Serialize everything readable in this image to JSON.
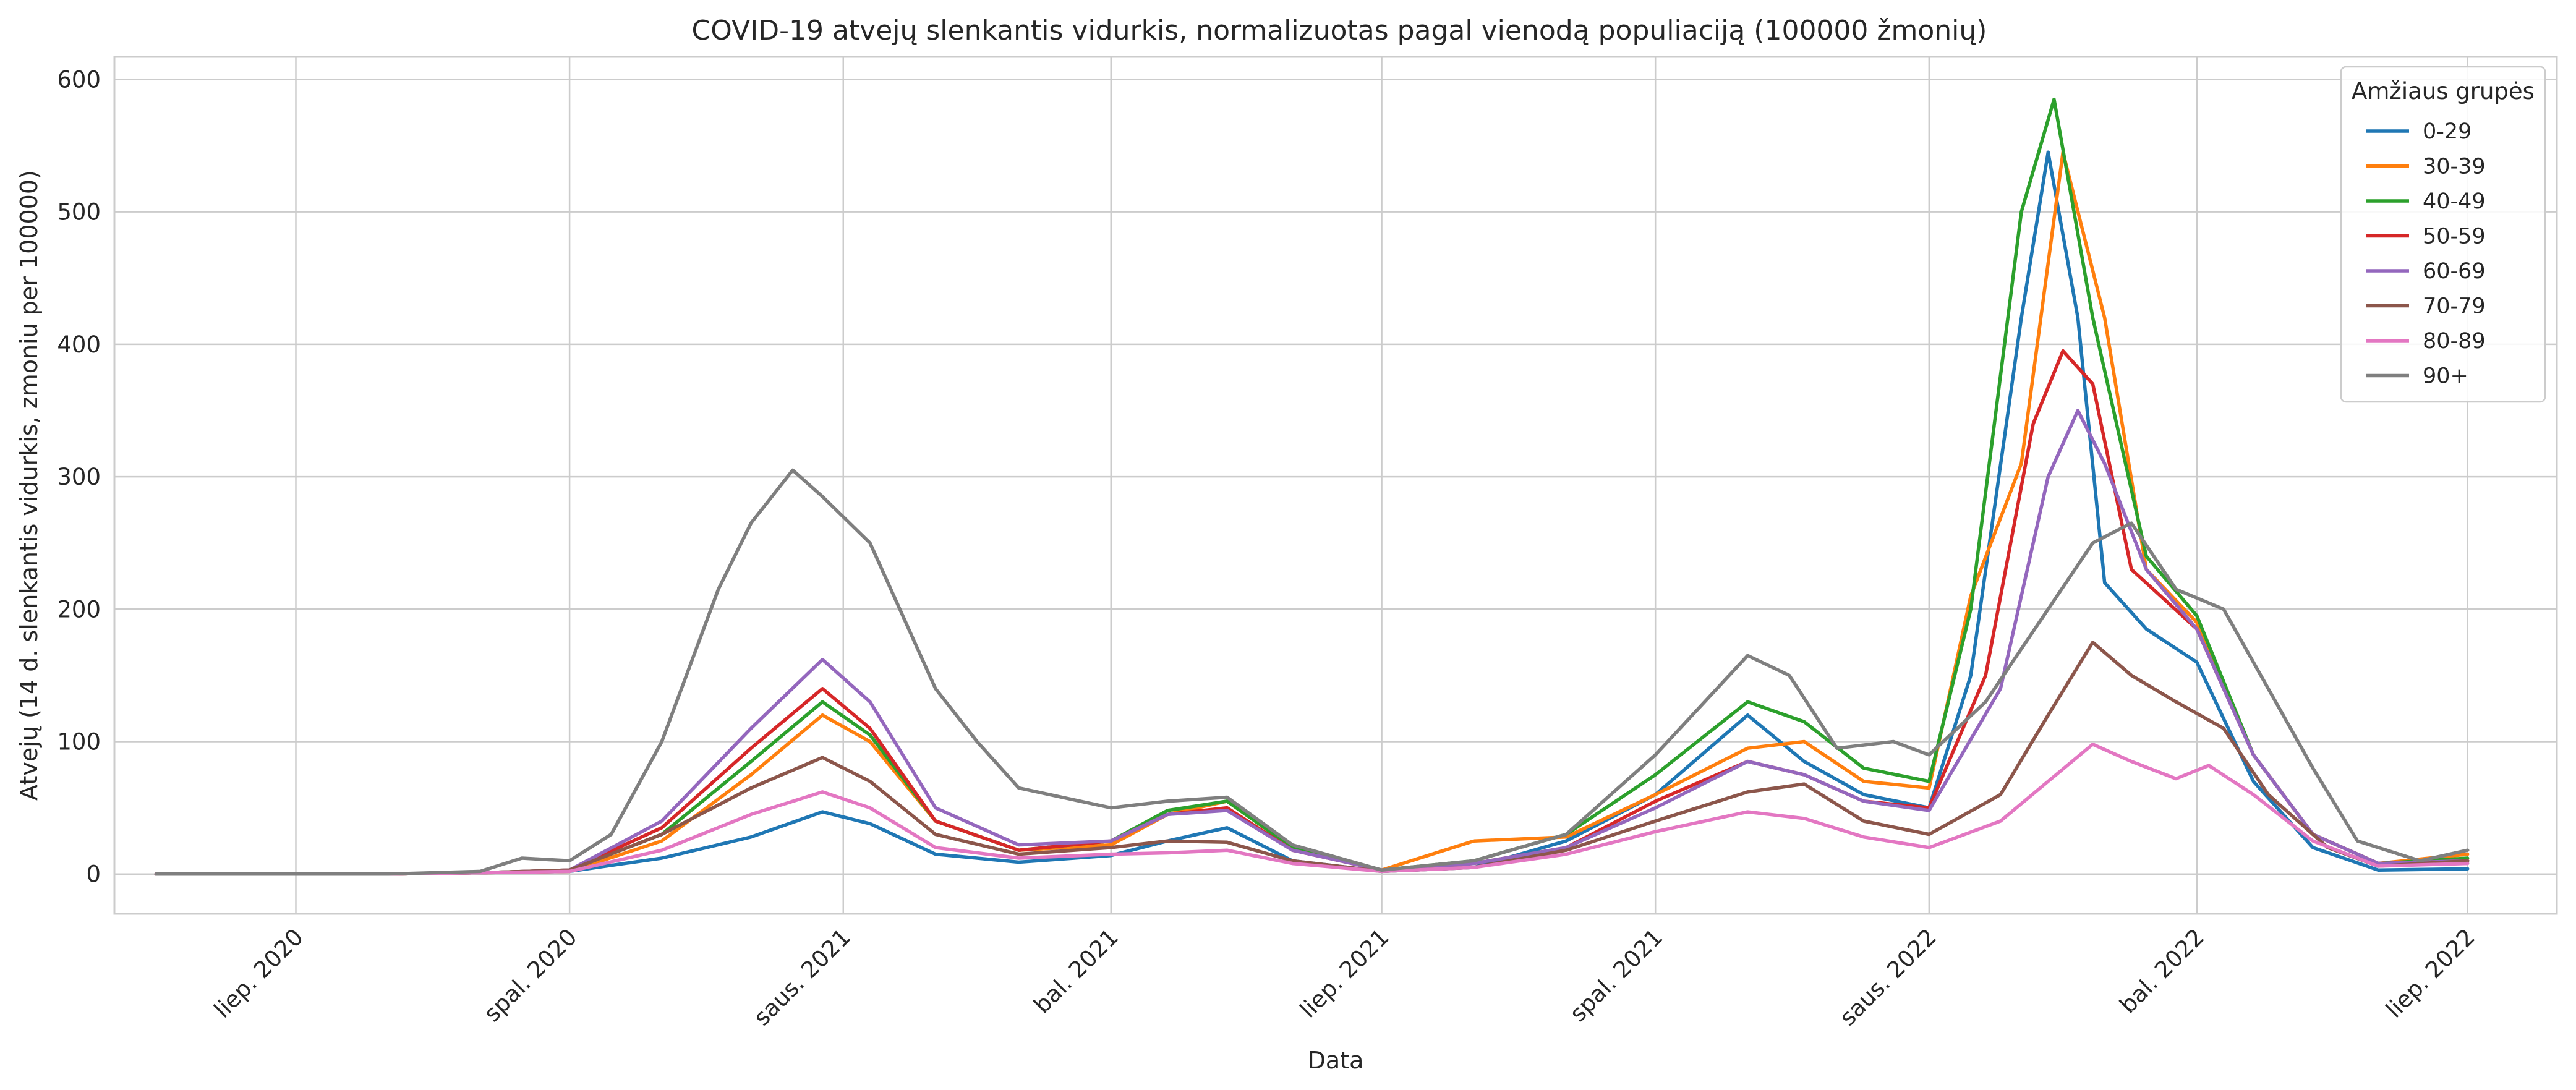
{
  "chart_data": {
    "type": "line",
    "title": "COVID-19 atvejų slenkantis vidurkis, normalizuotas pagal vienodą populiaciją (100000 žmonių)",
    "xlabel": "Data",
    "ylabel": "Atvejų (14 d. slenkantis vidurkis, zmoniu per 100000)",
    "x_range": [
      "2020-05-01",
      "2022-07-31"
    ],
    "ylim": [
      -30,
      617
    ],
    "grid": true,
    "legend": {
      "title": "Amžiaus grupės",
      "position": "top-right"
    },
    "x_ticks": [
      {
        "date": "2020-07-01",
        "label": "liep. 2020"
      },
      {
        "date": "2020-10-01",
        "label": "spal. 2020"
      },
      {
        "date": "2021-01-01",
        "label": "saus. 2021"
      },
      {
        "date": "2021-04-01",
        "label": "bal. 2021"
      },
      {
        "date": "2021-07-01",
        "label": "liep. 2021"
      },
      {
        "date": "2021-10-01",
        "label": "spal. 2021"
      },
      {
        "date": "2022-01-01",
        "label": "saus. 2022"
      },
      {
        "date": "2022-04-01",
        "label": "bal. 2022"
      },
      {
        "date": "2022-07-01",
        "label": "liep. 2022"
      }
    ],
    "y_ticks": [
      0,
      100,
      200,
      300,
      400,
      500,
      600
    ],
    "series": [
      {
        "name": "0-29",
        "color": "#1f77b4",
        "points": [
          [
            "2020-05-15",
            0
          ],
          [
            "2020-08-01",
            0
          ],
          [
            "2020-09-01",
            1
          ],
          [
            "2020-10-01",
            2
          ],
          [
            "2020-11-01",
            12
          ],
          [
            "2020-12-01",
            28
          ],
          [
            "2020-12-25",
            47
          ],
          [
            "2021-01-10",
            38
          ],
          [
            "2021-02-01",
            15
          ],
          [
            "2021-03-01",
            9
          ],
          [
            "2021-04-01",
            14
          ],
          [
            "2021-04-20",
            25
          ],
          [
            "2021-05-10",
            35
          ],
          [
            "2021-06-01",
            10
          ],
          [
            "2021-07-01",
            2
          ],
          [
            "2021-08-01",
            5
          ],
          [
            "2021-09-01",
            25
          ],
          [
            "2021-10-01",
            60
          ],
          [
            "2021-11-01",
            120
          ],
          [
            "2021-11-20",
            85
          ],
          [
            "2021-12-10",
            60
          ],
          [
            "2022-01-01",
            50
          ],
          [
            "2022-01-15",
            150
          ],
          [
            "2022-02-01",
            420
          ],
          [
            "2022-02-10",
            545
          ],
          [
            "2022-02-20",
            420
          ],
          [
            "2022-03-01",
            220
          ],
          [
            "2022-03-15",
            185
          ],
          [
            "2022-04-01",
            160
          ],
          [
            "2022-04-20",
            70
          ],
          [
            "2022-05-10",
            20
          ],
          [
            "2022-06-01",
            3
          ],
          [
            "2022-07-01",
            4
          ]
        ]
      },
      {
        "name": "30-39",
        "color": "#ff7f0e",
        "points": [
          [
            "2020-05-15",
            0
          ],
          [
            "2020-08-01",
            0
          ],
          [
            "2020-09-01",
            1
          ],
          [
            "2020-10-01",
            2
          ],
          [
            "2020-11-01",
            25
          ],
          [
            "2020-12-01",
            75
          ],
          [
            "2020-12-25",
            120
          ],
          [
            "2021-01-10",
            100
          ],
          [
            "2021-02-01",
            40
          ],
          [
            "2021-03-01",
            18
          ],
          [
            "2021-04-01",
            22
          ],
          [
            "2021-04-20",
            45
          ],
          [
            "2021-05-10",
            55
          ],
          [
            "2021-06-01",
            20
          ],
          [
            "2021-07-01",
            3
          ],
          [
            "2021-08-01",
            25
          ],
          [
            "2021-09-01",
            28
          ],
          [
            "2021-10-01",
            60
          ],
          [
            "2021-11-01",
            95
          ],
          [
            "2021-11-20",
            100
          ],
          [
            "2021-12-10",
            70
          ],
          [
            "2022-01-01",
            65
          ],
          [
            "2022-01-15",
            210
          ],
          [
            "2022-02-01",
            310
          ],
          [
            "2022-02-15",
            545
          ],
          [
            "2022-03-01",
            420
          ],
          [
            "2022-03-15",
            230
          ],
          [
            "2022-04-01",
            190
          ],
          [
            "2022-04-20",
            90
          ],
          [
            "2022-05-10",
            30
          ],
          [
            "2022-06-01",
            8
          ],
          [
            "2022-07-01",
            15
          ]
        ]
      },
      {
        "name": "40-49",
        "color": "#2ca02c",
        "points": [
          [
            "2020-05-15",
            0
          ],
          [
            "2020-08-01",
            0
          ],
          [
            "2020-09-01",
            1
          ],
          [
            "2020-10-01",
            3
          ],
          [
            "2020-11-01",
            30
          ],
          [
            "2020-12-01",
            85
          ],
          [
            "2020-12-25",
            130
          ],
          [
            "2021-01-10",
            105
          ],
          [
            "2021-02-01",
            40
          ],
          [
            "2021-03-01",
            18
          ],
          [
            "2021-04-01",
            25
          ],
          [
            "2021-04-20",
            48
          ],
          [
            "2021-05-10",
            55
          ],
          [
            "2021-06-01",
            20
          ],
          [
            "2021-07-01",
            3
          ],
          [
            "2021-08-01",
            10
          ],
          [
            "2021-09-01",
            30
          ],
          [
            "2021-10-01",
            75
          ],
          [
            "2021-11-01",
            130
          ],
          [
            "2021-11-20",
            115
          ],
          [
            "2021-12-10",
            80
          ],
          [
            "2022-01-01",
            70
          ],
          [
            "2022-01-15",
            200
          ],
          [
            "2022-02-01",
            500
          ],
          [
            "2022-02-12",
            585
          ],
          [
            "2022-02-25",
            420
          ],
          [
            "2022-03-15",
            240
          ],
          [
            "2022-04-01",
            195
          ],
          [
            "2022-04-20",
            90
          ],
          [
            "2022-05-10",
            30
          ],
          [
            "2022-06-01",
            8
          ],
          [
            "2022-07-01",
            12
          ]
        ]
      },
      {
        "name": "50-59",
        "color": "#d62728",
        "points": [
          [
            "2020-05-15",
            0
          ],
          [
            "2020-08-01",
            0
          ],
          [
            "2020-09-01",
            1
          ],
          [
            "2020-10-01",
            3
          ],
          [
            "2020-11-01",
            35
          ],
          [
            "2020-12-01",
            95
          ],
          [
            "2020-12-25",
            140
          ],
          [
            "2021-01-10",
            110
          ],
          [
            "2021-02-01",
            40
          ],
          [
            "2021-03-01",
            18
          ],
          [
            "2021-04-01",
            25
          ],
          [
            "2021-04-20",
            45
          ],
          [
            "2021-05-10",
            50
          ],
          [
            "2021-06-01",
            18
          ],
          [
            "2021-07-01",
            3
          ],
          [
            "2021-08-01",
            8
          ],
          [
            "2021-09-01",
            20
          ],
          [
            "2021-10-01",
            55
          ],
          [
            "2021-11-01",
            85
          ],
          [
            "2021-11-20",
            75
          ],
          [
            "2021-12-10",
            55
          ],
          [
            "2022-01-01",
            50
          ],
          [
            "2022-01-20",
            150
          ],
          [
            "2022-02-05",
            340
          ],
          [
            "2022-02-15",
            395
          ],
          [
            "2022-02-25",
            370
          ],
          [
            "2022-03-10",
            230
          ],
          [
            "2022-04-01",
            185
          ],
          [
            "2022-04-20",
            90
          ],
          [
            "2022-05-10",
            30
          ],
          [
            "2022-06-01",
            8
          ],
          [
            "2022-07-01",
            10
          ]
        ]
      },
      {
        "name": "60-69",
        "color": "#9467bd",
        "points": [
          [
            "2020-05-15",
            0
          ],
          [
            "2020-08-01",
            0
          ],
          [
            "2020-09-01",
            1
          ],
          [
            "2020-10-01",
            3
          ],
          [
            "2020-11-01",
            40
          ],
          [
            "2020-12-01",
            110
          ],
          [
            "2020-12-25",
            162
          ],
          [
            "2021-01-10",
            130
          ],
          [
            "2021-02-01",
            50
          ],
          [
            "2021-03-01",
            22
          ],
          [
            "2021-04-01",
            25
          ],
          [
            "2021-04-20",
            45
          ],
          [
            "2021-05-10",
            48
          ],
          [
            "2021-06-01",
            18
          ],
          [
            "2021-07-01",
            3
          ],
          [
            "2021-08-01",
            8
          ],
          [
            "2021-09-01",
            20
          ],
          [
            "2021-10-01",
            50
          ],
          [
            "2021-11-01",
            85
          ],
          [
            "2021-11-20",
            75
          ],
          [
            "2021-12-10",
            55
          ],
          [
            "2022-01-01",
            48
          ],
          [
            "2022-01-25",
            140
          ],
          [
            "2022-02-10",
            300
          ],
          [
            "2022-02-20",
            350
          ],
          [
            "2022-03-01",
            310
          ],
          [
            "2022-03-15",
            230
          ],
          [
            "2022-04-01",
            185
          ],
          [
            "2022-04-20",
            90
          ],
          [
            "2022-05-10",
            30
          ],
          [
            "2022-06-01",
            8
          ],
          [
            "2022-07-01",
            10
          ]
        ]
      },
      {
        "name": "70-79",
        "color": "#8c564b",
        "points": [
          [
            "2020-05-15",
            0
          ],
          [
            "2020-08-01",
            0
          ],
          [
            "2020-09-01",
            1
          ],
          [
            "2020-10-01",
            3
          ],
          [
            "2020-11-01",
            30
          ],
          [
            "2020-12-01",
            65
          ],
          [
            "2020-12-25",
            88
          ],
          [
            "2021-01-10",
            70
          ],
          [
            "2021-02-01",
            30
          ],
          [
            "2021-03-01",
            15
          ],
          [
            "2021-04-01",
            20
          ],
          [
            "2021-04-20",
            25
          ],
          [
            "2021-05-10",
            24
          ],
          [
            "2021-06-01",
            10
          ],
          [
            "2021-07-01",
            2
          ],
          [
            "2021-08-01",
            5
          ],
          [
            "2021-09-01",
            18
          ],
          [
            "2021-10-01",
            40
          ],
          [
            "2021-11-01",
            62
          ],
          [
            "2021-11-20",
            68
          ],
          [
            "2021-12-10",
            40
          ],
          [
            "2022-01-01",
            30
          ],
          [
            "2022-01-25",
            60
          ],
          [
            "2022-02-10",
            120
          ],
          [
            "2022-02-25",
            175
          ],
          [
            "2022-03-10",
            150
          ],
          [
            "2022-03-25",
            130
          ],
          [
            "2022-04-10",
            110
          ],
          [
            "2022-04-25",
            60
          ],
          [
            "2022-05-15",
            20
          ],
          [
            "2022-06-01",
            6
          ],
          [
            "2022-07-01",
            10
          ]
        ]
      },
      {
        "name": "80-89",
        "color": "#e377c2",
        "points": [
          [
            "2020-05-15",
            0
          ],
          [
            "2020-08-01",
            0
          ],
          [
            "2020-09-01",
            1
          ],
          [
            "2020-10-01",
            2
          ],
          [
            "2020-11-01",
            18
          ],
          [
            "2020-12-01",
            45
          ],
          [
            "2020-12-25",
            62
          ],
          [
            "2021-01-10",
            50
          ],
          [
            "2021-02-01",
            20
          ],
          [
            "2021-03-01",
            12
          ],
          [
            "2021-04-01",
            15
          ],
          [
            "2021-04-20",
            16
          ],
          [
            "2021-05-10",
            18
          ],
          [
            "2021-06-01",
            8
          ],
          [
            "2021-07-01",
            2
          ],
          [
            "2021-08-01",
            5
          ],
          [
            "2021-09-01",
            15
          ],
          [
            "2021-10-01",
            32
          ],
          [
            "2021-11-01",
            47
          ],
          [
            "2021-11-20",
            42
          ],
          [
            "2021-12-10",
            28
          ],
          [
            "2022-01-01",
            20
          ],
          [
            "2022-01-25",
            40
          ],
          [
            "2022-02-10",
            70
          ],
          [
            "2022-02-25",
            98
          ],
          [
            "2022-03-10",
            85
          ],
          [
            "2022-03-25",
            72
          ],
          [
            "2022-04-05",
            82
          ],
          [
            "2022-04-20",
            60
          ],
          [
            "2022-05-10",
            25
          ],
          [
            "2022-06-01",
            6
          ],
          [
            "2022-07-01",
            8
          ]
        ]
      },
      {
        "name": "90+",
        "color": "#7f7f7f",
        "points": [
          [
            "2020-05-15",
            0
          ],
          [
            "2020-08-01",
            0
          ],
          [
            "2020-09-01",
            2
          ],
          [
            "2020-09-15",
            12
          ],
          [
            "2020-10-01",
            10
          ],
          [
            "2020-10-15",
            30
          ],
          [
            "2020-11-01",
            100
          ],
          [
            "2020-11-20",
            215
          ],
          [
            "2020-12-01",
            265
          ],
          [
            "2020-12-15",
            305
          ],
          [
            "2020-12-25",
            285
          ],
          [
            "2021-01-10",
            250
          ],
          [
            "2021-01-20",
            200
          ],
          [
            "2021-02-01",
            140
          ],
          [
            "2021-02-15",
            100
          ],
          [
            "2021-03-01",
            65
          ],
          [
            "2021-04-01",
            50
          ],
          [
            "2021-04-20",
            55
          ],
          [
            "2021-05-10",
            58
          ],
          [
            "2021-06-01",
            22
          ],
          [
            "2021-07-01",
            3
          ],
          [
            "2021-08-01",
            10
          ],
          [
            "2021-09-01",
            30
          ],
          [
            "2021-10-01",
            90
          ],
          [
            "2021-11-01",
            165
          ],
          [
            "2021-11-15",
            150
          ],
          [
            "2021-12-01",
            95
          ],
          [
            "2021-12-20",
            100
          ],
          [
            "2022-01-01",
            90
          ],
          [
            "2022-01-20",
            130
          ],
          [
            "2022-02-10",
            200
          ],
          [
            "2022-02-25",
            250
          ],
          [
            "2022-03-10",
            265
          ],
          [
            "2022-03-25",
            215
          ],
          [
            "2022-04-10",
            200
          ],
          [
            "2022-04-25",
            140
          ],
          [
            "2022-05-10",
            80
          ],
          [
            "2022-05-25",
            25
          ],
          [
            "2022-06-15",
            10
          ],
          [
            "2022-07-01",
            18
          ]
        ]
      }
    ]
  }
}
